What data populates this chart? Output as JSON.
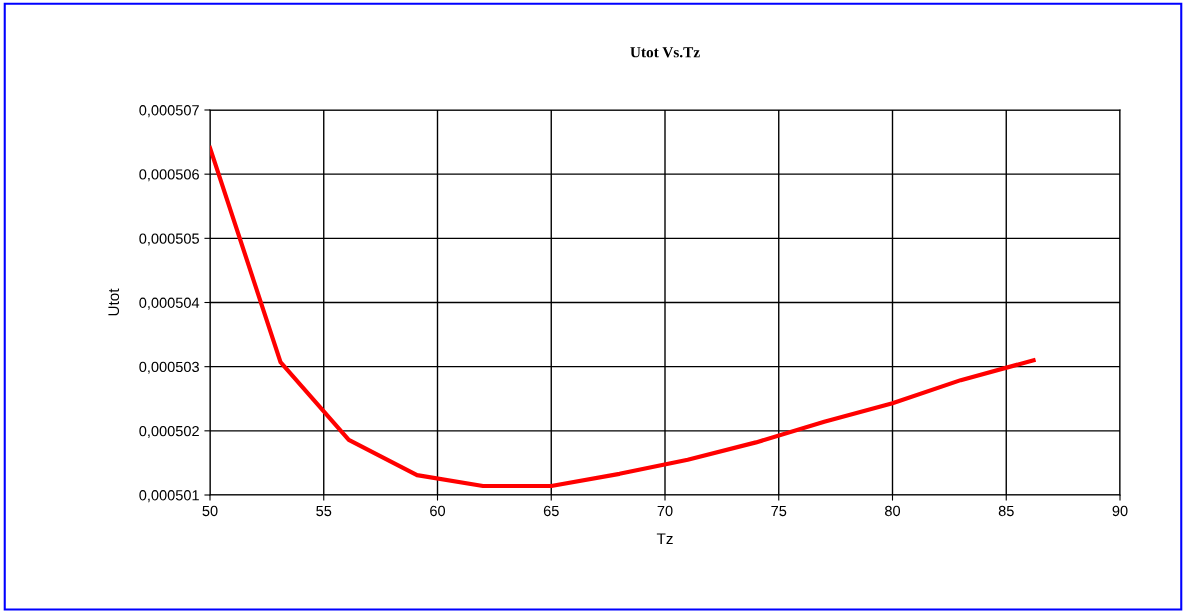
{
  "chart_data": {
    "type": "line",
    "title": "Utot Vs.Tz",
    "xlabel": "Tz",
    "ylabel": "Utot",
    "series": [
      {
        "color": "#ff0000",
        "x": [
          50,
          53.1,
          56.1,
          59.1,
          62,
          65,
          68,
          71,
          74,
          77,
          80,
          83,
          86.2
        ],
        "values": [
          0.00050641,
          0.00050307,
          0.00050186,
          0.00050131,
          0.00050114,
          0.00050114,
          0.00050133,
          0.00050155,
          0.00050182,
          0.00050214,
          0.00050243,
          0.00050279,
          0.0005031
        ]
      }
    ],
    "xlim": [
      50,
      90
    ],
    "xticks": [
      50,
      55,
      60,
      65,
      70,
      75,
      80,
      85,
      90
    ],
    "ylim": [
      0.000501,
      0.000507
    ],
    "yticks": [
      {
        "value": 0.000501,
        "label": "0,000501"
      },
      {
        "value": 0.000502,
        "label": "0,000502"
      },
      {
        "value": 0.000503,
        "label": "0,000503"
      },
      {
        "value": 0.000504,
        "label": "0,000504"
      },
      {
        "value": 0.000505,
        "label": "0,000505"
      },
      {
        "value": 0.000506,
        "label": "0,000506"
      },
      {
        "value": 0.000507,
        "label": "0,000507"
      }
    ],
    "grid": true,
    "marker": "none",
    "line_style": "solid",
    "legend": false
  }
}
